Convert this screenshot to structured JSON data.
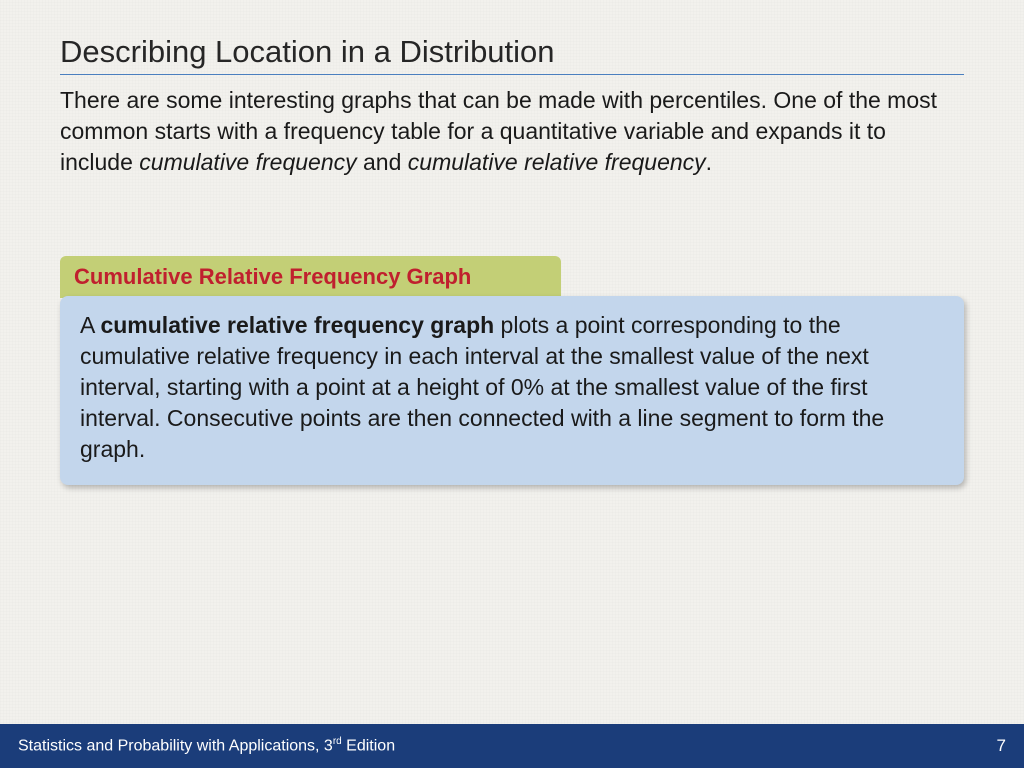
{
  "title": "Describing Location in a Distribution",
  "intro_html": "There are some interesting graphs that can be made with percentiles. One of the most common starts with a frequency table for a quantitative variable and expands it to include <em>cumulative frequency</em> and <em>cumulative relative frequency</em>.",
  "callout": {
    "header": "Cumulative Relative Frequency Graph",
    "body_html": "A <b>cumulative relative frequency graph</b> plots a point corresponding to the cumulative relative frequency in each interval at the smallest value of the next interval, starting with a point at a height of 0% at the smallest value of the first interval. Consecutive points are then connected with a line segment to form the graph."
  },
  "footer": {
    "book_html": "Statistics and Probability with Applications, 3<sup>rd</sup> Edition",
    "page": "7"
  },
  "colors": {
    "page_bg": "#f2f1ed",
    "title_rule": "#4a7fbf",
    "header_bg": "#c3cf76",
    "header_text": "#c0202e",
    "body_bg": "#c3d6ec",
    "footer_bg": "#1b3d7a",
    "footer_text": "#ffffff"
  }
}
